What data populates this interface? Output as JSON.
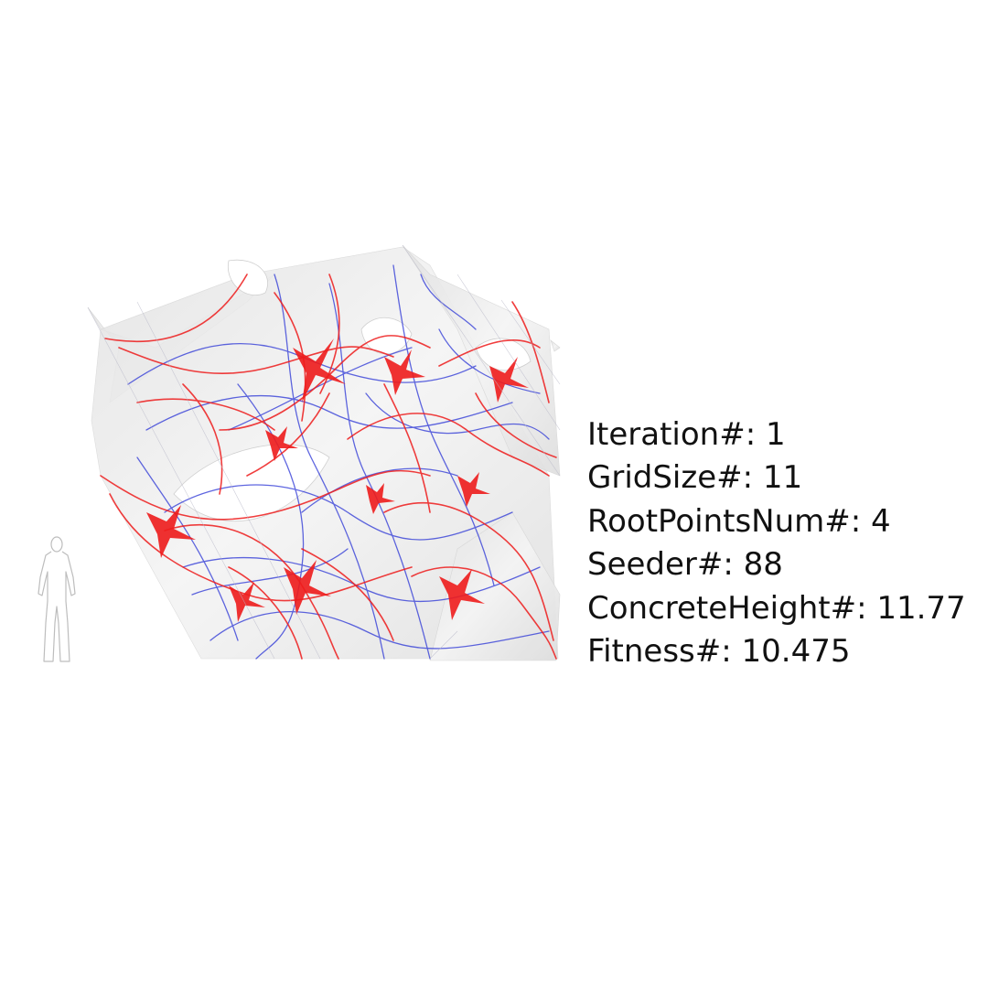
{
  "readout": [
    {
      "label": "Iteration#:",
      "value": "1"
    },
    {
      "label": "GridSize#:",
      "value": "11"
    },
    {
      "label": "RootPointsNum#:",
      "value": "4"
    },
    {
      "label": "Seeder#:",
      "value": "88"
    },
    {
      "label": "ConcreteHeight#:",
      "value": "11.77"
    },
    {
      "label": "Fitness#:",
      "value": "10.475"
    }
  ],
  "colors": {
    "background": "#ffffff",
    "shell": "#e9e9e9",
    "strand_red": "#ee1c1c",
    "strand_blue": "#2a34d6",
    "text": "#111111"
  }
}
